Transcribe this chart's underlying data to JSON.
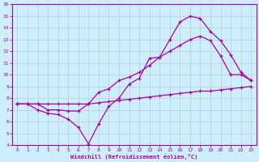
{
  "xlabel": "Windchill (Refroidissement éolien,°C)",
  "background_color": "#cceeff",
  "line_color": "#aa00aa",
  "grid_color": "#bbcccc",
  "xlim": [
    -0.5,
    23.5
  ],
  "ylim": [
    4,
    16
  ],
  "xticks": [
    0,
    1,
    2,
    3,
    4,
    5,
    6,
    7,
    8,
    9,
    10,
    11,
    12,
    13,
    14,
    15,
    16,
    17,
    18,
    19,
    20,
    21,
    22,
    23
  ],
  "yticks": [
    4,
    5,
    6,
    7,
    8,
    9,
    10,
    11,
    12,
    13,
    14,
    15,
    16
  ],
  "line1_x": [
    0,
    1,
    2,
    3,
    4,
    5,
    6,
    7,
    8,
    9,
    10,
    11,
    12,
    13,
    14,
    15,
    16,
    17,
    18,
    19,
    20,
    21,
    22,
    23
  ],
  "line1_y": [
    7.5,
    7.5,
    7.0,
    6.7,
    6.6,
    6.2,
    5.5,
    4.1,
    5.8,
    7.3,
    8.0,
    9.2,
    9.7,
    11.4,
    11.5,
    13.0,
    14.5,
    15.0,
    14.8,
    13.7,
    12.9,
    11.7,
    10.2,
    9.5
  ],
  "line2_x": [
    0,
    1,
    2,
    3,
    4,
    5,
    6,
    7,
    8,
    9,
    10,
    11,
    12,
    13,
    14,
    15,
    16,
    17,
    18,
    19,
    20,
    21,
    22,
    23
  ],
  "line2_y": [
    7.5,
    7.5,
    7.5,
    7.0,
    7.0,
    6.9,
    6.9,
    7.5,
    8.5,
    8.8,
    9.5,
    9.8,
    10.2,
    10.8,
    11.5,
    12.0,
    12.5,
    13.0,
    13.3,
    12.9,
    11.6,
    10.0,
    10.0,
    9.5
  ],
  "line3_x": [
    0,
    1,
    2,
    3,
    4,
    5,
    6,
    7,
    8,
    9,
    10,
    11,
    12,
    13,
    14,
    15,
    16,
    17,
    18,
    19,
    20,
    21,
    22,
    23
  ],
  "line3_y": [
    7.5,
    7.5,
    7.5,
    7.5,
    7.5,
    7.5,
    7.5,
    7.5,
    7.6,
    7.7,
    7.8,
    7.9,
    8.0,
    8.1,
    8.2,
    8.3,
    8.4,
    8.5,
    8.6,
    8.6,
    8.7,
    8.8,
    8.9,
    9.0
  ]
}
